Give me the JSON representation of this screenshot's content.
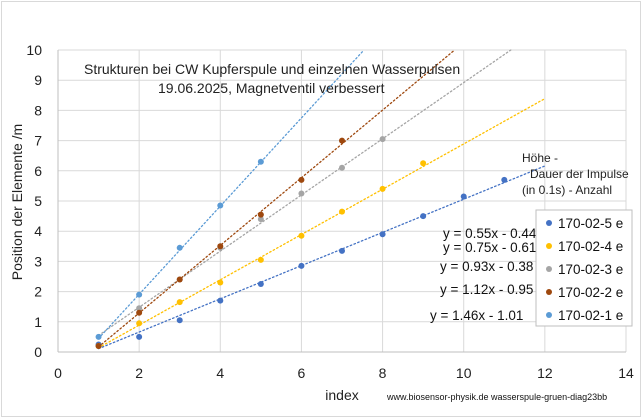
{
  "chart_data": {
    "type": "scatter",
    "title": "Strukturen bei CW Kupferspule und einzelnen Wasserpulsen",
    "subtitle": "19.06.2025, Magnetventil verbessert",
    "xlabel": "index",
    "ylabel": "Position der Elemente /m",
    "xlim": [
      0,
      14
    ],
    "ylim": [
      0,
      10
    ],
    "x_ticks": [
      "0",
      "2",
      "4",
      "6",
      "8",
      "10",
      "12",
      "14"
    ],
    "y_ticks": [
      "0",
      "1",
      "2",
      "3",
      "4",
      "5",
      "6",
      "7",
      "8",
      "9",
      "10"
    ],
    "grid": true,
    "legend_position": "right",
    "legend_header": [
      "Höhe -",
      "Dauer der Impulse",
      "(in 0.1s) -  Anzahl"
    ],
    "credit": "www.biosensor-physik.de  wasserspule-gruen-diag23bb",
    "series": [
      {
        "name": "170-02-5 e",
        "color": "#4472c4",
        "x": [
          1,
          2,
          3,
          4,
          5,
          6,
          7,
          8,
          9,
          10,
          11
        ],
        "y": [
          0.25,
          0.5,
          1.05,
          1.7,
          2.25,
          2.85,
          3.35,
          3.9,
          4.5,
          5.15,
          5.7
        ],
        "trendline": {
          "label": "y = 0.55x - 0.44",
          "slope": 0.55,
          "intercept": -0.44,
          "x_range": [
            1,
            12
          ]
        }
      },
      {
        "name": "170-02-4 e",
        "color": "#ffc000",
        "x": [
          1,
          2,
          3,
          4,
          5,
          6,
          7,
          8,
          9
        ],
        "y": [
          0.2,
          0.95,
          1.65,
          2.3,
          3.05,
          3.85,
          4.65,
          5.4,
          6.25
        ],
        "trendline": {
          "label": "y = 0.75x - 0.61",
          "slope": 0.75,
          "intercept": -0.61,
          "x_range": [
            1,
            12
          ]
        }
      },
      {
        "name": "170-02-3 e",
        "color": "#a5a5a5",
        "x": [
          1,
          2,
          3,
          4,
          5,
          6,
          7,
          8
        ],
        "y": [
          0.2,
          1.45,
          2.4,
          3.45,
          4.4,
          5.25,
          6.1,
          7.05
        ],
        "trendline": {
          "label": "y = 0.93x - 0.38",
          "slope": 0.93,
          "intercept": -0.38,
          "x_range": [
            1,
            11.2
          ]
        }
      },
      {
        "name": "170-02-2 e",
        "color": "#9e480e",
        "x": [
          1,
          2,
          3,
          4,
          5,
          6,
          7
        ],
        "y": [
          0.2,
          1.3,
          2.4,
          3.5,
          4.55,
          5.7,
          7.0
        ],
        "trendline": {
          "label": "y = 1.12x - 0.95",
          "slope": 1.12,
          "intercept": -0.95,
          "x_range": [
            1,
            9.8
          ]
        }
      },
      {
        "name": "170-02-1 e",
        "color": "#5b9bd5",
        "x": [
          1,
          2,
          3,
          4,
          5
        ],
        "y": [
          0.5,
          1.9,
          3.45,
          4.85,
          6.3
        ],
        "trendline": {
          "label": "y = 1.46x - 1.01",
          "slope": 1.46,
          "intercept": -1.01,
          "x_range": [
            1,
            7.8
          ]
        }
      }
    ]
  }
}
